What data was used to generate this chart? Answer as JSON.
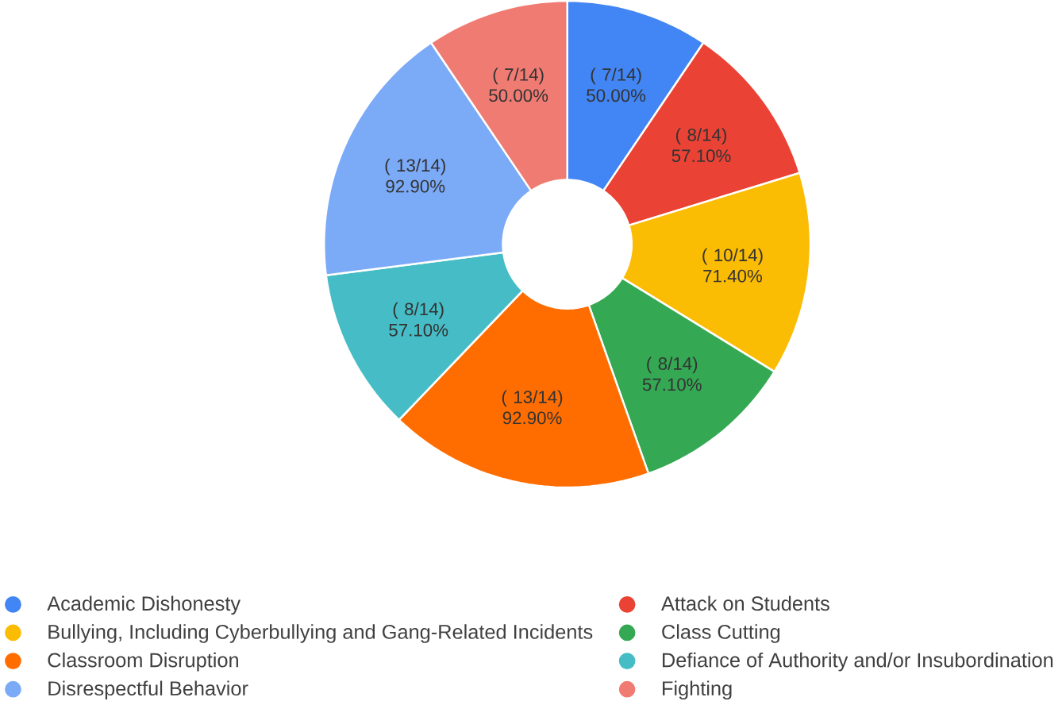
{
  "chart_data": {
    "type": "donut",
    "categories": [
      "Academic Dishonesty",
      "Attack on Students",
      "Bullying, Including Cyberbullying and Gang-Related Incidents",
      "Class Cutting",
      "Classroom Disruption",
      "Defiance of Authority and/or Insubordination",
      "Disrespectful Behavior",
      "Fighting"
    ],
    "values": [
      50.0,
      57.1,
      71.4,
      57.1,
      92.9,
      57.1,
      92.9,
      50.0
    ],
    "value_labels": [
      "( 7/14) 50.00%",
      "( 8/14) 57.10%",
      "( 10/14) 71.40%",
      "( 8/14) 57.10%",
      "( 13/14) 92.90%",
      "( 8/14) 57.10%",
      "( 13/14) 92.90%",
      "( 7/14) 50.00%"
    ],
    "colors": [
      "#4285f4",
      "#ea4335",
      "#fbbc04",
      "#34a853",
      "#ff6d01",
      "#46bdc6",
      "#7baaf7",
      "#f07b72"
    ],
    "legend": "bottom"
  }
}
